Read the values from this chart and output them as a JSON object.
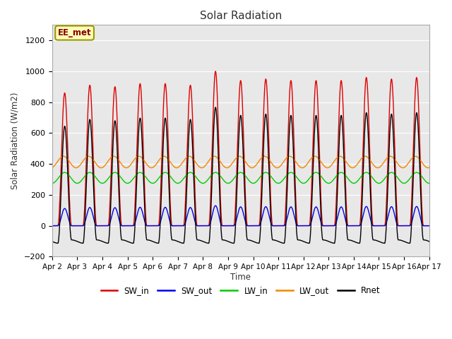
{
  "title": "Solar Radiation",
  "ylabel": "Solar Radiation (W/m2)",
  "xlabel": "Time",
  "ylim": [
    -200,
    1300
  ],
  "yticks": [
    -200,
    0,
    200,
    400,
    600,
    800,
    1000,
    1200
  ],
  "xtick_labels": [
    "Apr 2",
    "Apr 3",
    "Apr 4",
    "Apr 5",
    "Apr 6",
    "Apr 7",
    "Apr 8",
    "Apr 9",
    "Apr 10",
    "Apr 11",
    "Apr 12",
    "Apr 13",
    "Apr 14",
    "Apr 15",
    "Apr 16",
    "Apr 17"
  ],
  "line_colors": {
    "SW_in": "#dd0000",
    "SW_out": "#0000ee",
    "LW_in": "#00cc00",
    "LW_out": "#ee8800",
    "Rnet": "#000000"
  },
  "annotation_text": "EE_met",
  "annotation_bg": "#ffffbb",
  "annotation_border": "#999900",
  "legend_labels": [
    "SW_in",
    "SW_out",
    "LW_in",
    "LW_out",
    "Rnet"
  ],
  "n_days": 15,
  "sw_in_peaks": [
    860,
    910,
    900,
    920,
    920,
    910,
    1000,
    940,
    950,
    940,
    940,
    940,
    960,
    950,
    960
  ],
  "sw_out_scale": 0.13,
  "lw_in_base": 310,
  "lw_in_amp": 35,
  "lw_out_base": 375,
  "lw_out_amp": 75,
  "rnet_night": -70,
  "plot_bg": "#e8e8e8",
  "fig_bg": "#ffffff"
}
